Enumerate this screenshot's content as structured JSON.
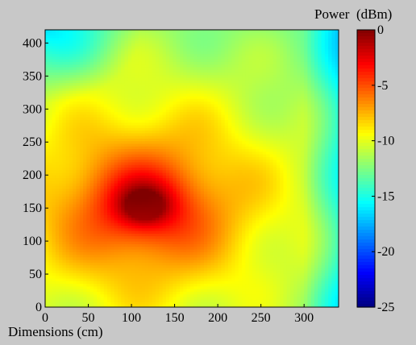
{
  "chart_data": {
    "type": "heatmap",
    "title": "",
    "xlabel": "Dimensions (cm)",
    "ylabel": "",
    "xlim": [
      0,
      340
    ],
    "ylim": [
      0,
      420
    ],
    "x_ticks": [
      0,
      50,
      100,
      150,
      200,
      250,
      300
    ],
    "y_ticks": [
      0,
      50,
      100,
      150,
      200,
      250,
      300,
      350,
      400
    ],
    "colorbar": {
      "label": "Power  (dBm)",
      "min": -25,
      "max": 0,
      "ticks": [
        0,
        -5,
        -10,
        -15,
        -20,
        -25
      ],
      "colormap": "jet"
    },
    "peak": {
      "x": 115,
      "y": 155,
      "value": 0
    },
    "grid": false,
    "colors": {
      "background": "#c8c8c8",
      "peak": "#800000",
      "low": "#00008f"
    }
  }
}
